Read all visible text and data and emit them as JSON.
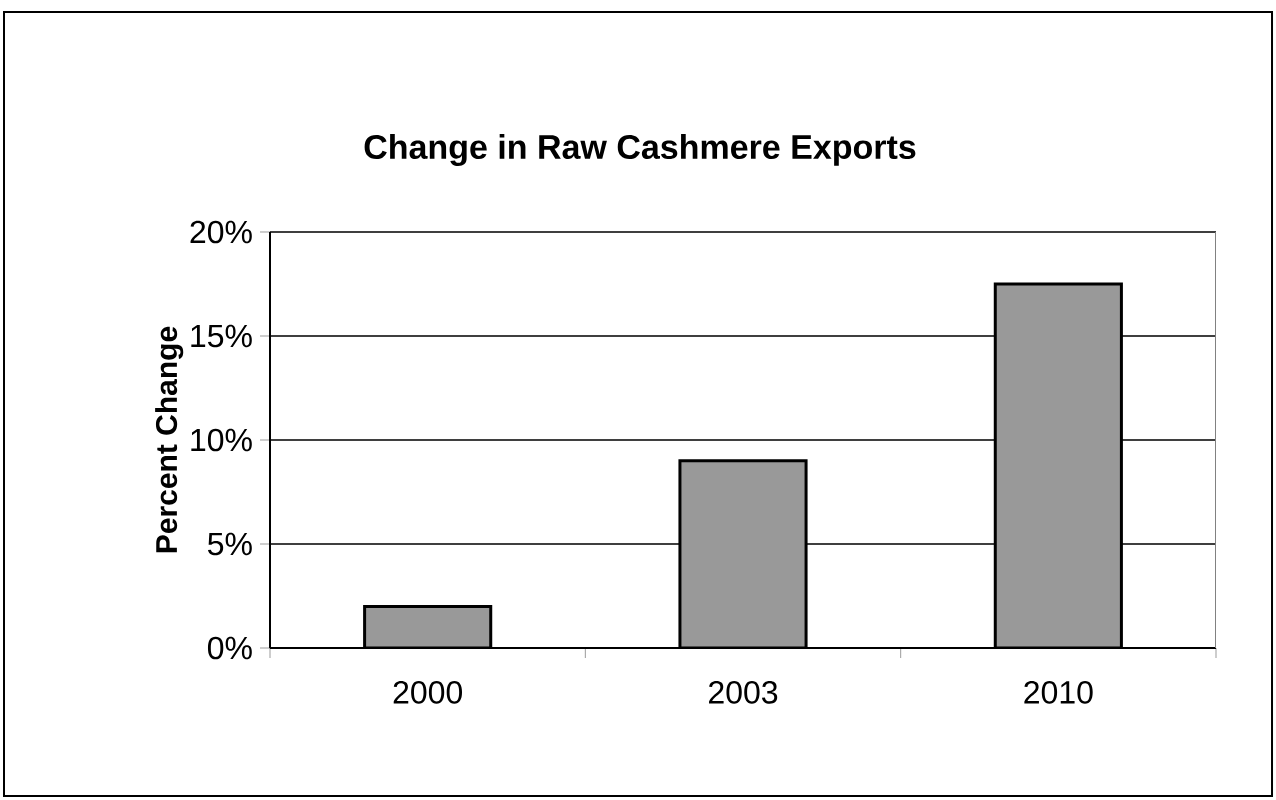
{
  "chart_data": {
    "type": "bar",
    "title": "Change in Raw Cashmere Exports",
    "ylabel": "Percent Change",
    "categories": [
      "2000",
      "2003",
      "2010"
    ],
    "values": [
      2,
      9,
      17.5
    ],
    "color": "#999999",
    "ylim": [
      0,
      20
    ],
    "yticks": [
      {
        "value": 0,
        "label": "0%"
      },
      {
        "value": 5,
        "label": "5%"
      },
      {
        "value": 10,
        "label": "10%"
      },
      {
        "value": 15,
        "label": "15%"
      },
      {
        "value": 20,
        "label": "20%"
      }
    ],
    "grid": "y"
  }
}
